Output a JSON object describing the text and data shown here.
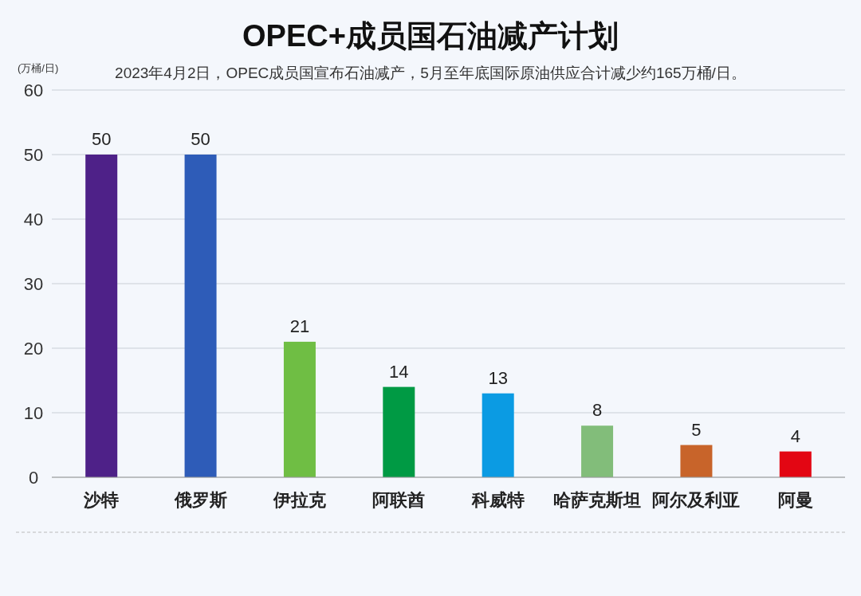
{
  "chart_data": {
    "type": "bar",
    "title": "OPEC+成员国石油减产计划",
    "subtitle": "2023年4月2日，OPEC成员国宣布石油减产，5月至年底国际原油供应合计减少约165万桶/日。",
    "ylabel": "(万桶/日)",
    "categories": [
      "沙特",
      "俄罗斯",
      "伊拉克",
      "阿联酋",
      "科威特",
      "哈萨克斯坦",
      "阿尔及利亚",
      "阿曼"
    ],
    "values": [
      50,
      50,
      21,
      14,
      13,
      8,
      5,
      4
    ],
    "colors": [
      "#4e2188",
      "#2e5cb8",
      "#6fbe44",
      "#009a44",
      "#0b9be3",
      "#82bd7a",
      "#c8642a",
      "#e30613"
    ],
    "ylim": [
      0,
      60
    ],
    "yticks": [
      0,
      10,
      20,
      30,
      40,
      50,
      60
    ],
    "grid": "y",
    "data_labels": true
  }
}
